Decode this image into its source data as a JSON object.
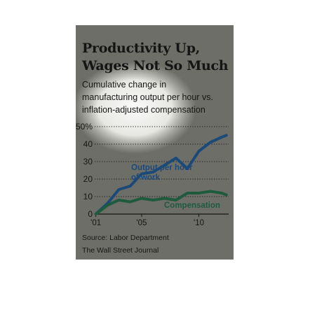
{
  "chart_data": {
    "type": "line",
    "title_lines": [
      "Productivity Up,",
      "Wages Not So Much"
    ],
    "subtitle_lines": [
      "Cumulative change in",
      "manufacturing output per hour vs.",
      "inflation-adjusted compensation"
    ],
    "x_tick_labels": [
      "'01",
      "'05",
      "'10"
    ],
    "x_ticks": [
      2001,
      2005,
      2010
    ],
    "y_tick_labels": [
      "50%",
      "40",
      "30",
      "20",
      "10",
      "0"
    ],
    "y_ticks": [
      50,
      40,
      30,
      20,
      10,
      0
    ],
    "xlim": [
      2000.9,
      2012.6
    ],
    "ylim": [
      0,
      50
    ],
    "grid": "horizontal dotted",
    "series": [
      {
        "name": "Output per hour of work",
        "label_lines": [
          "Output per hour",
          "of work"
        ],
        "color": "#1c4a78",
        "x": [
          2001,
          2002,
          2003,
          2004,
          2005,
          2006,
          2007,
          2008,
          2009,
          2010,
          2011,
          2012,
          2012.4
        ],
        "y": [
          0,
          6,
          14,
          16,
          23,
          24,
          28,
          32,
          26,
          36,
          41,
          44,
          45
        ]
      },
      {
        "name": "Compensation",
        "label_lines": [
          "Compensation"
        ],
        "color": "#1e5a3c",
        "x": [
          2001,
          2002,
          2003,
          2004,
          2005,
          2006,
          2007,
          2008,
          2009,
          2010,
          2011,
          2012,
          2012.4
        ],
        "y": [
          0,
          5,
          8,
          7,
          9,
          8,
          9,
          8,
          12,
          12,
          13,
          12,
          11
        ]
      }
    ],
    "source": "Source: Labor Department",
    "credit": "The Wall Street Journal"
  }
}
